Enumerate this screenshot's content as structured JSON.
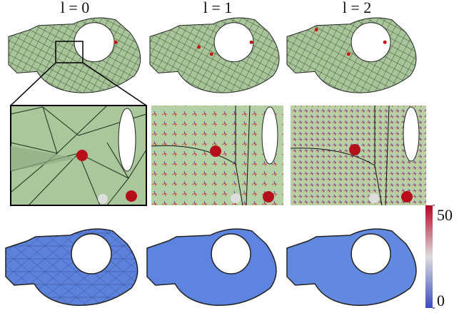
{
  "columns": [
    {
      "label": "l = 0"
    },
    {
      "label": "l = 1"
    },
    {
      "label": "l = 2"
    }
  ],
  "colorbar": {
    "range": [
      0,
      50
    ],
    "ticks": [
      0,
      50
    ]
  }
}
